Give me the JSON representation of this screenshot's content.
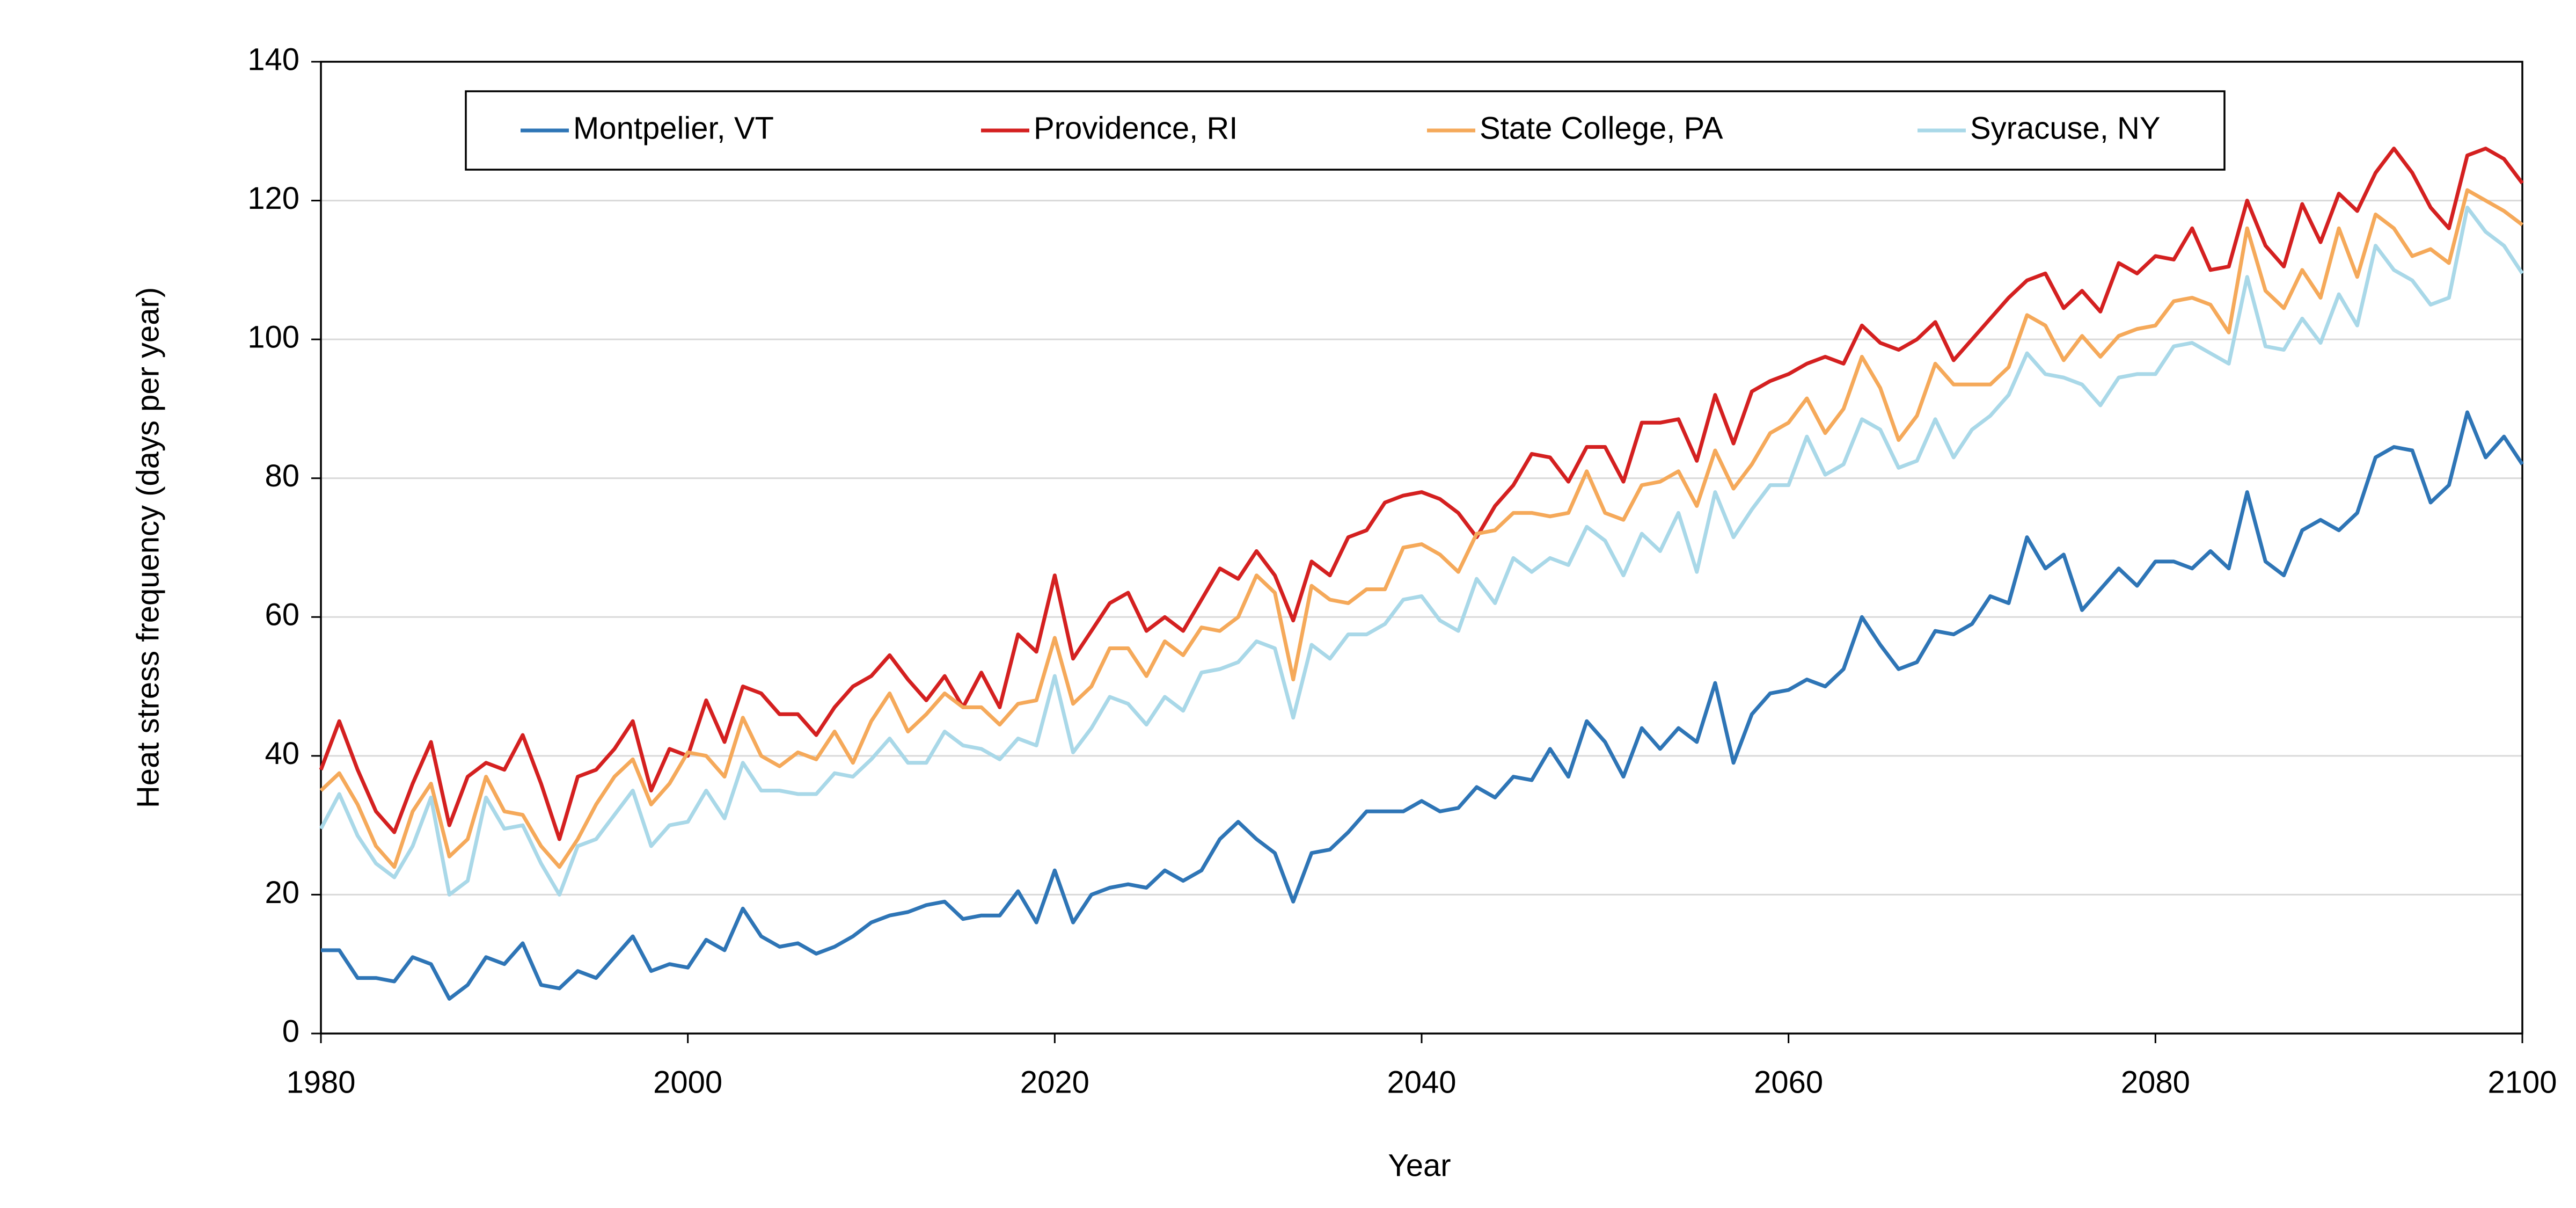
{
  "chart_data": {
    "type": "line",
    "xlabel": "Year",
    "ylabel": "Heat stress frequency (days per year)",
    "x": [
      1980,
      1981,
      1982,
      1983,
      1984,
      1985,
      1986,
      1987,
      1988,
      1989,
      1990,
      1991,
      1992,
      1993,
      1994,
      1995,
      1996,
      1997,
      1998,
      1999,
      2000,
      2001,
      2002,
      2003,
      2004,
      2005,
      2006,
      2007,
      2008,
      2009,
      2010,
      2011,
      2012,
      2013,
      2014,
      2015,
      2016,
      2017,
      2018,
      2019,
      2020,
      2021,
      2022,
      2023,
      2024,
      2025,
      2026,
      2027,
      2028,
      2029,
      2030,
      2031,
      2032,
      2033,
      2034,
      2035,
      2036,
      2037,
      2038,
      2039,
      2040,
      2041,
      2042,
      2043,
      2044,
      2045,
      2046,
      2047,
      2048,
      2049,
      2050,
      2051,
      2052,
      2053,
      2054,
      2055,
      2056,
      2057,
      2058,
      2059,
      2060,
      2061,
      2062,
      2063,
      2064,
      2065,
      2066,
      2067,
      2068,
      2069,
      2070,
      2071,
      2072,
      2073,
      2074,
      2075,
      2076,
      2077,
      2078,
      2079,
      2080,
      2081,
      2082,
      2083,
      2084,
      2085,
      2086,
      2087,
      2088,
      2089,
      2090,
      2091,
      2092,
      2093,
      2094,
      2095,
      2096,
      2097,
      2098,
      2099,
      2100
    ],
    "series": [
      {
        "name": "Montpelier, VT",
        "color": "#2e75b6",
        "values": [
          12,
          12,
          8,
          8,
          7.5,
          11,
          10,
          5,
          7,
          11,
          10,
          13,
          7,
          6.5,
          9,
          8,
          11,
          14,
          9,
          10,
          9.5,
          13.5,
          12,
          18,
          14,
          12.5,
          13,
          11.5,
          12.5,
          14,
          16,
          17,
          17.5,
          18.5,
          19,
          16.5,
          17,
          17,
          20.5,
          16,
          23.5,
          16,
          20,
          21,
          21.5,
          21,
          23.5,
          22,
          23.5,
          28,
          30.5,
          28,
          26,
          19,
          26,
          26.5,
          29,
          32,
          32,
          32,
          33.5,
          32,
          32.5,
          35.5,
          34,
          37,
          36.5,
          41,
          37,
          45,
          42,
          37,
          44,
          41,
          44,
          42,
          50.5,
          39,
          46,
          49,
          49.5,
          51,
          50,
          52.5,
          60,
          56,
          52.5,
          53.5,
          58,
          57.5,
          59,
          63,
          62,
          71.5,
          67,
          69,
          61,
          64,
          67,
          64.5,
          68,
          68,
          67,
          69.5,
          67,
          78,
          68,
          66,
          72.5,
          74,
          72.5,
          75,
          83,
          84.5,
          84,
          76.5,
          79,
          89.5,
          83,
          86,
          82
        ]
      },
      {
        "name": "Providence, RI",
        "color": "#d42020",
        "values": [
          38,
          45,
          38,
          32,
          29,
          36,
          42,
          30,
          37,
          39,
          38,
          43,
          36,
          28,
          37,
          38,
          41,
          45,
          35,
          41,
          40,
          48,
          42,
          50,
          49,
          46,
          46,
          43,
          47,
          50,
          51.5,
          54.5,
          51,
          48,
          51.5,
          47,
          52,
          47,
          57.5,
          55,
          66,
          54,
          58,
          62,
          63.5,
          58,
          60,
          58,
          62.5,
          67,
          65.5,
          69.5,
          66,
          59.5,
          68,
          66,
          71.5,
          72.5,
          76.5,
          77.5,
          78,
          77,
          75,
          71.5,
          76,
          79,
          83.5,
          83,
          79.5,
          84.5,
          84.5,
          79.5,
          88,
          88,
          88.5,
          82.5,
          92,
          85,
          92.5,
          94,
          95,
          96.5,
          97.5,
          96.5,
          102,
          99.5,
          98.5,
          100,
          102.5,
          97,
          100,
          103,
          106,
          108.5,
          109.5,
          104.5,
          107,
          104,
          111,
          109.5,
          112,
          111.5,
          116,
          110,
          110.5,
          120,
          113.5,
          110.5,
          119.5,
          114,
          121,
          118.5,
          124,
          127.5,
          124,
          119,
          116,
          126.5,
          127.5,
          126,
          122.5
        ]
      },
      {
        "name": "State College, PA",
        "color": "#f5a95a",
        "values": [
          35,
          37.5,
          33,
          27,
          24,
          32,
          36,
          25.5,
          28,
          37,
          32,
          31.5,
          27,
          24,
          28,
          33,
          37,
          39.5,
          33,
          36,
          40.5,
          40,
          37,
          45.5,
          40,
          38.5,
          40.5,
          39.5,
          43.5,
          39,
          45,
          49,
          43.5,
          46,
          49,
          47,
          47,
          44.5,
          47.5,
          48,
          57,
          47.5,
          50,
          55.5,
          55.5,
          51.5,
          56.5,
          54.5,
          58.5,
          58,
          60,
          66,
          63.5,
          51,
          64.5,
          62.5,
          62,
          64,
          64,
          70,
          70.5,
          69,
          66.5,
          72,
          72.5,
          75,
          75,
          74.5,
          75,
          81,
          75,
          74,
          79,
          79.5,
          81,
          76,
          84,
          78.5,
          82,
          86.5,
          88,
          91.5,
          86.5,
          90,
          97.5,
          93,
          85.5,
          89,
          96.5,
          93.5,
          93.5,
          93.5,
          96,
          103.5,
          102,
          97,
          100.5,
          97.5,
          100.5,
          101.5,
          102,
          105.5,
          106,
          105,
          101,
          116,
          107,
          104.5,
          110,
          106,
          116,
          109,
          118,
          116,
          112,
          113,
          111,
          121.5,
          120,
          118.5,
          116.5
        ]
      },
      {
        "name": "Syracuse, NY",
        "color": "#a9d8e8",
        "values": [
          29.5,
          34.5,
          28.5,
          24.5,
          22.5,
          27,
          34,
          20,
          22,
          34,
          29.5,
          30,
          24.5,
          20,
          27,
          28,
          31.5,
          35,
          27,
          30,
          30.5,
          35,
          31,
          39,
          35,
          35,
          34.5,
          34.5,
          37.5,
          37,
          39.5,
          42.5,
          39,
          39,
          43.5,
          41.5,
          41,
          39.5,
          42.5,
          41.5,
          51.5,
          40.5,
          44,
          48.5,
          47.5,
          44.5,
          48.5,
          46.5,
          52,
          52.5,
          53.5,
          56.5,
          55.5,
          45.5,
          56,
          54,
          57.5,
          57.5,
          59,
          62.5,
          63,
          59.5,
          58,
          65.5,
          62,
          68.5,
          66.5,
          68.5,
          67.5,
          73,
          71,
          66,
          72,
          69.5,
          75,
          66.5,
          78,
          71.5,
          75.5,
          79,
          79,
          86,
          80.5,
          82,
          88.5,
          87,
          81.5,
          82.5,
          88.5,
          83,
          87,
          89,
          92,
          98,
          95,
          94.5,
          93.5,
          90.5,
          94.5,
          95,
          95,
          99,
          99.5,
          98,
          96.5,
          109,
          99,
          98.5,
          103,
          99.5,
          106.5,
          102,
          113.5,
          110,
          108.5,
          105,
          106,
          119,
          115.5,
          113.5,
          109.5
        ]
      }
    ],
    "xlim": [
      1980,
      2100
    ],
    "xticks": [
      1980,
      2000,
      2020,
      2040,
      2060,
      2080,
      2100
    ],
    "ylim": [
      0,
      140
    ],
    "yticks": [
      0,
      20,
      40,
      60,
      80,
      100,
      120,
      140
    ],
    "grid": true,
    "legend": "top"
  }
}
